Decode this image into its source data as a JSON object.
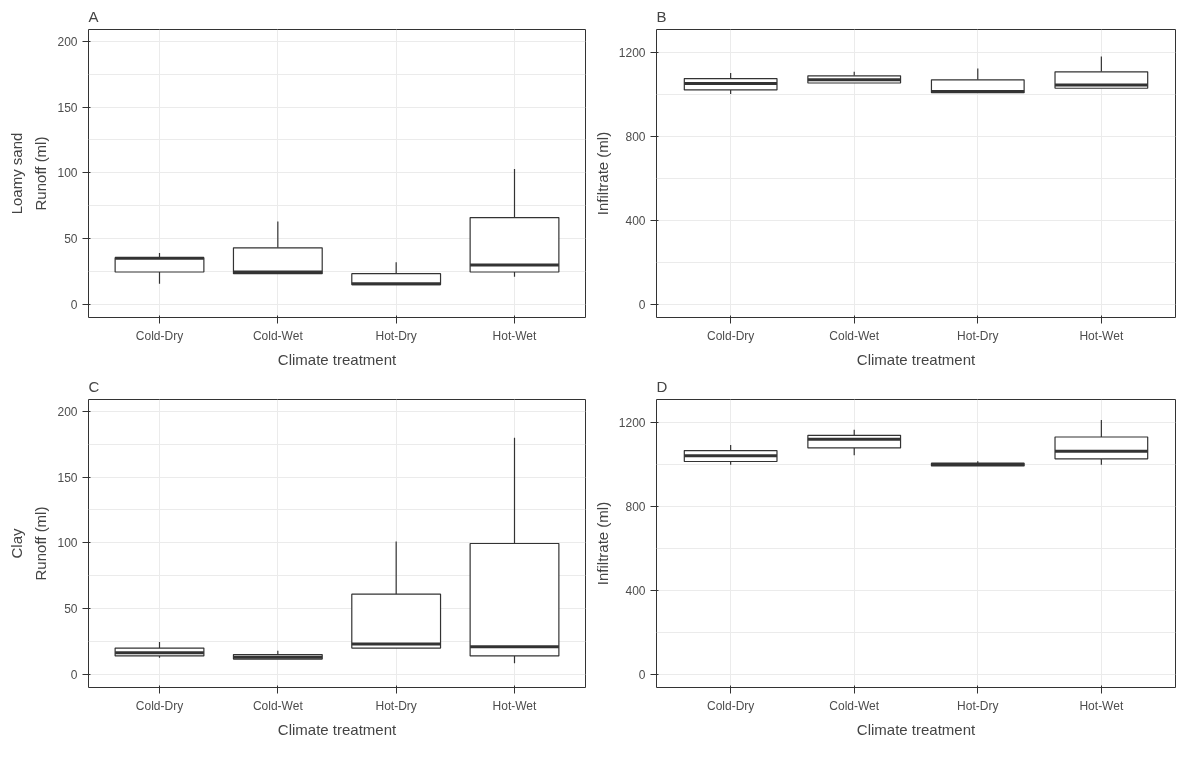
{
  "chart_data": [
    {
      "type": "box",
      "title": "A",
      "annotations": [
        "Loamy sand"
      ],
      "xlabel": "Climate treatment",
      "ylabel": "Runoff (ml)",
      "categories": [
        "Cold-Dry",
        "Cold-Wet",
        "Hot-Dry",
        "Hot-Wet"
      ],
      "ylim": [
        -10,
        209
      ],
      "yticks": [
        0,
        50,
        100,
        150,
        200
      ],
      "grid": true,
      "boxes": [
        {
          "low": 15.7,
          "q1": 24.6,
          "median": 35,
          "q3": 35.5,
          "high": 39
        },
        {
          "low": 23.3,
          "q1": 23.3,
          "median": 24.6,
          "q3": 43,
          "high": 63
        },
        {
          "low": 15,
          "q1": 15,
          "median": 15.7,
          "q3": 23.3,
          "high": 32
        },
        {
          "low": 21,
          "q1": 24.6,
          "median": 30,
          "q3": 66,
          "high": 103
        }
      ]
    },
    {
      "type": "box",
      "title": "B",
      "xlabel": "Climate treatment",
      "ylabel": "Infiltrate (ml)",
      "categories": [
        "Cold-Dry",
        "Cold-Wet",
        "Hot-Dry",
        "Hot-Wet"
      ],
      "ylim": [
        -63,
        1310
      ],
      "yticks": [
        0,
        400,
        800,
        1200
      ],
      "grid": true,
      "boxes": [
        {
          "low": 1002,
          "q1": 1022,
          "median": 1052,
          "q3": 1076,
          "high": 1103
        },
        {
          "low": 1055,
          "q1": 1055,
          "median": 1071,
          "q3": 1089,
          "high": 1108
        },
        {
          "low": 1009,
          "q1": 1009,
          "median": 1014,
          "q3": 1070,
          "high": 1124
        },
        {
          "low": 1030,
          "q1": 1030,
          "median": 1046,
          "q3": 1108,
          "high": 1181
        }
      ]
    },
    {
      "type": "box",
      "title": "C",
      "annotations": [
        "Clay"
      ],
      "xlabel": "Climate treatment",
      "ylabel": "Runoff (ml)",
      "categories": [
        "Cold-Dry",
        "Cold-Wet",
        "Hot-Dry",
        "Hot-Wet"
      ],
      "ylim": [
        -10,
        209
      ],
      "yticks": [
        0,
        50,
        100,
        150,
        200
      ],
      "grid": true,
      "boxes": [
        {
          "low": 12.7,
          "q1": 14,
          "median": 16.5,
          "q3": 20,
          "high": 24.6
        },
        {
          "low": 11.6,
          "q1": 11.6,
          "median": 13,
          "q3": 15,
          "high": 18
        },
        {
          "low": 20,
          "q1": 20,
          "median": 23,
          "q3": 61,
          "high": 101
        },
        {
          "low": 8.4,
          "q1": 14,
          "median": 21,
          "q3": 99.5,
          "high": 180
        }
      ]
    },
    {
      "type": "box",
      "title": "D",
      "xlabel": "Climate treatment",
      "ylabel": "Infiltrate (ml)",
      "categories": [
        "Cold-Dry",
        "Cold-Wet",
        "Hot-Dry",
        "Hot-Wet"
      ],
      "ylim": [
        -63,
        1312
      ],
      "yticks": [
        0,
        400,
        800,
        1200
      ],
      "grid": true,
      "boxes": [
        {
          "low": 1000,
          "q1": 1016,
          "median": 1044,
          "q3": 1068,
          "high": 1095
        },
        {
          "low": 1046,
          "q1": 1081,
          "median": 1122,
          "q3": 1141,
          "high": 1168
        },
        {
          "low": 995,
          "q1": 995,
          "median": 1002,
          "q3": 1008,
          "high": 1017
        },
        {
          "low": 1000,
          "q1": 1029,
          "median": 1065,
          "q3": 1133,
          "high": 1214
        }
      ]
    }
  ]
}
